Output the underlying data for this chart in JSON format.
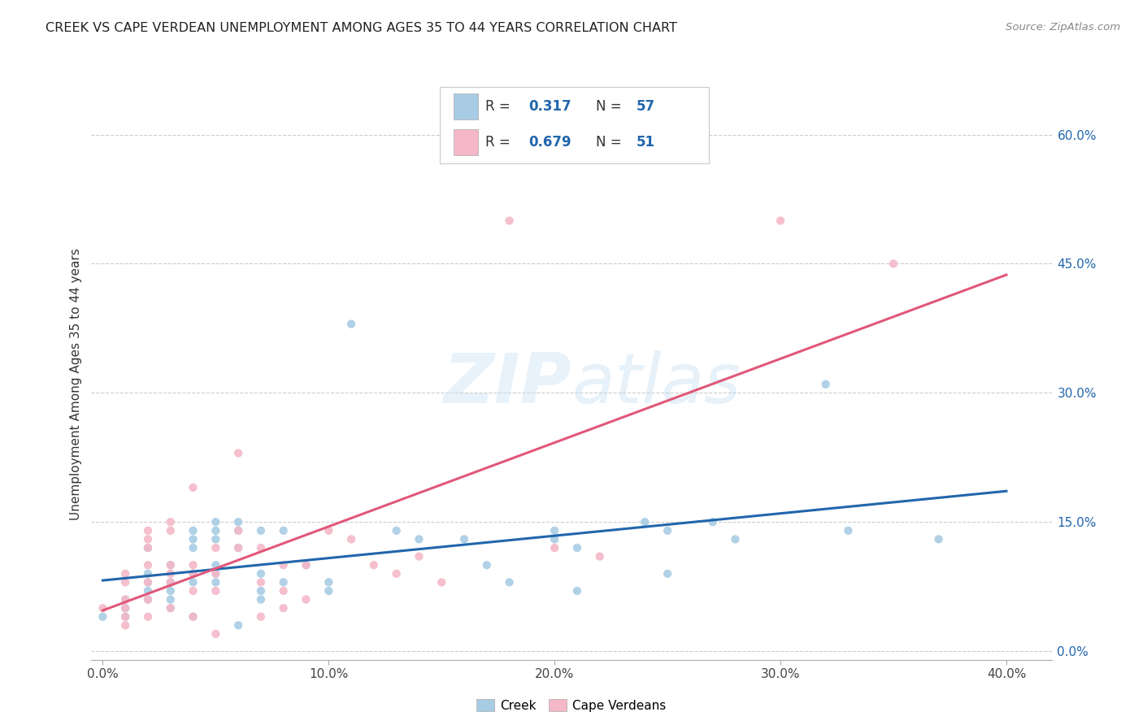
{
  "title": "CREEK VS CAPE VERDEAN UNEMPLOYMENT AMONG AGES 35 TO 44 YEARS CORRELATION CHART",
  "source": "Source: ZipAtlas.com",
  "xlabel_ticks": [
    "0.0%",
    "10.0%",
    "20.0%",
    "30.0%",
    "40.0%"
  ],
  "xlabel_tick_vals": [
    0.0,
    0.1,
    0.2,
    0.3,
    0.4
  ],
  "ylabel_ticks": [
    "0.0%",
    "15.0%",
    "30.0%",
    "45.0%",
    "60.0%"
  ],
  "ylabel_tick_vals": [
    0.0,
    0.15,
    0.3,
    0.45,
    0.6
  ],
  "ylabel": "Unemployment Among Ages 35 to 44 years",
  "xlim": [
    -0.005,
    0.42
  ],
  "ylim": [
    -0.01,
    0.63
  ],
  "creek_color": "#a8cce4",
  "cape_color": "#f4b8c8",
  "creek_line_color": "#2166ac",
  "cape_line_color": "#e05878",
  "creek_R": 0.317,
  "creek_N": 57,
  "cape_R": 0.679,
  "cape_N": 51,
  "watermark_zip": "ZIP",
  "watermark_atlas": "atlas",
  "background_color": "#ffffff",
  "creek_scatter": [
    [
      0.0,
      0.04
    ],
    [
      0.01,
      0.05
    ],
    [
      0.01,
      0.04
    ],
    [
      0.01,
      0.06
    ],
    [
      0.02,
      0.08
    ],
    [
      0.02,
      0.07
    ],
    [
      0.02,
      0.06
    ],
    [
      0.02,
      0.09
    ],
    [
      0.02,
      0.12
    ],
    [
      0.03,
      0.1
    ],
    [
      0.03,
      0.08
    ],
    [
      0.03,
      0.07
    ],
    [
      0.03,
      0.06
    ],
    [
      0.03,
      0.05
    ],
    [
      0.04,
      0.14
    ],
    [
      0.04,
      0.13
    ],
    [
      0.04,
      0.12
    ],
    [
      0.04,
      0.09
    ],
    [
      0.04,
      0.08
    ],
    [
      0.04,
      0.04
    ],
    [
      0.05,
      0.15
    ],
    [
      0.05,
      0.14
    ],
    [
      0.05,
      0.13
    ],
    [
      0.05,
      0.1
    ],
    [
      0.05,
      0.09
    ],
    [
      0.05,
      0.08
    ],
    [
      0.06,
      0.15
    ],
    [
      0.06,
      0.14
    ],
    [
      0.06,
      0.12
    ],
    [
      0.06,
      0.03
    ],
    [
      0.07,
      0.14
    ],
    [
      0.07,
      0.09
    ],
    [
      0.07,
      0.07
    ],
    [
      0.07,
      0.06
    ],
    [
      0.08,
      0.14
    ],
    [
      0.08,
      0.08
    ],
    [
      0.09,
      0.1
    ],
    [
      0.1,
      0.08
    ],
    [
      0.1,
      0.07
    ],
    [
      0.11,
      0.38
    ],
    [
      0.13,
      0.14
    ],
    [
      0.14,
      0.13
    ],
    [
      0.16,
      0.13
    ],
    [
      0.17,
      0.1
    ],
    [
      0.18,
      0.08
    ],
    [
      0.2,
      0.14
    ],
    [
      0.2,
      0.13
    ],
    [
      0.21,
      0.12
    ],
    [
      0.21,
      0.07
    ],
    [
      0.24,
      0.15
    ],
    [
      0.25,
      0.14
    ],
    [
      0.25,
      0.09
    ],
    [
      0.27,
      0.15
    ],
    [
      0.28,
      0.13
    ],
    [
      0.32,
      0.31
    ],
    [
      0.33,
      0.14
    ],
    [
      0.37,
      0.13
    ]
  ],
  "cape_scatter": [
    [
      0.0,
      0.05
    ],
    [
      0.01,
      0.09
    ],
    [
      0.01,
      0.08
    ],
    [
      0.01,
      0.06
    ],
    [
      0.01,
      0.05
    ],
    [
      0.01,
      0.04
    ],
    [
      0.01,
      0.03
    ],
    [
      0.02,
      0.14
    ],
    [
      0.02,
      0.13
    ],
    [
      0.02,
      0.12
    ],
    [
      0.02,
      0.1
    ],
    [
      0.02,
      0.08
    ],
    [
      0.02,
      0.06
    ],
    [
      0.02,
      0.04
    ],
    [
      0.03,
      0.15
    ],
    [
      0.03,
      0.14
    ],
    [
      0.03,
      0.1
    ],
    [
      0.03,
      0.09
    ],
    [
      0.03,
      0.08
    ],
    [
      0.03,
      0.05
    ],
    [
      0.04,
      0.19
    ],
    [
      0.04,
      0.1
    ],
    [
      0.04,
      0.09
    ],
    [
      0.04,
      0.07
    ],
    [
      0.04,
      0.04
    ],
    [
      0.05,
      0.12
    ],
    [
      0.05,
      0.09
    ],
    [
      0.05,
      0.07
    ],
    [
      0.05,
      0.02
    ],
    [
      0.06,
      0.23
    ],
    [
      0.06,
      0.14
    ],
    [
      0.06,
      0.12
    ],
    [
      0.07,
      0.12
    ],
    [
      0.07,
      0.08
    ],
    [
      0.07,
      0.04
    ],
    [
      0.08,
      0.1
    ],
    [
      0.08,
      0.07
    ],
    [
      0.08,
      0.05
    ],
    [
      0.09,
      0.1
    ],
    [
      0.09,
      0.06
    ],
    [
      0.1,
      0.14
    ],
    [
      0.11,
      0.13
    ],
    [
      0.12,
      0.1
    ],
    [
      0.13,
      0.09
    ],
    [
      0.14,
      0.11
    ],
    [
      0.15,
      0.08
    ],
    [
      0.18,
      0.5
    ],
    [
      0.2,
      0.12
    ],
    [
      0.22,
      0.11
    ],
    [
      0.3,
      0.5
    ],
    [
      0.35,
      0.45
    ]
  ]
}
